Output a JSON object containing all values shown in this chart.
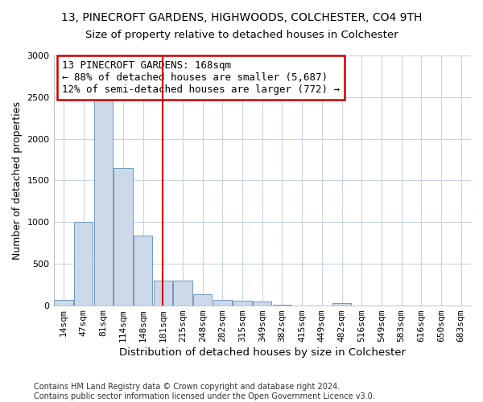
{
  "title": "13, PINECROFT GARDENS, HIGHWOODS, COLCHESTER, CO4 9TH",
  "subtitle": "Size of property relative to detached houses in Colchester",
  "xlabel": "Distribution of detached houses by size in Colchester",
  "ylabel": "Number of detached properties",
  "footer_line1": "Contains HM Land Registry data © Crown copyright and database right 2024.",
  "footer_line2": "Contains public sector information licensed under the Open Government Licence v3.0.",
  "categories": [
    "14sqm",
    "47sqm",
    "81sqm",
    "114sqm",
    "148sqm",
    "181sqm",
    "215sqm",
    "248sqm",
    "282sqm",
    "315sqm",
    "349sqm",
    "382sqm",
    "415sqm",
    "449sqm",
    "482sqm",
    "516sqm",
    "549sqm",
    "583sqm",
    "616sqm",
    "650sqm",
    "683sqm"
  ],
  "values": [
    60,
    1000,
    2480,
    1650,
    840,
    300,
    295,
    135,
    60,
    55,
    45,
    5,
    0,
    0,
    30,
    0,
    0,
    0,
    0,
    0,
    0
  ],
  "bar_color": "#ccd9e8",
  "bar_edge_color": "#7098c0",
  "red_line_x": 5.0,
  "annotation_line1": "13 PINECROFT GARDENS: 168sqm",
  "annotation_line2": "← 88% of detached houses are smaller (5,687)",
  "annotation_line3": "12% of semi-detached houses are larger (772) →",
  "annotation_box_color": "white",
  "annotation_box_edge_color": "#cc0000",
  "red_line_color": "#cc0000",
  "ylim": [
    0,
    3000
  ],
  "yticks": [
    0,
    500,
    1000,
    1500,
    2000,
    2500,
    3000
  ],
  "grid_color": "#c8d4e4",
  "title_fontsize": 10,
  "subtitle_fontsize": 9.5,
  "axis_label_fontsize": 9,
  "tick_fontsize": 8,
  "footer_fontsize": 7,
  "annotation_fontsize": 9
}
